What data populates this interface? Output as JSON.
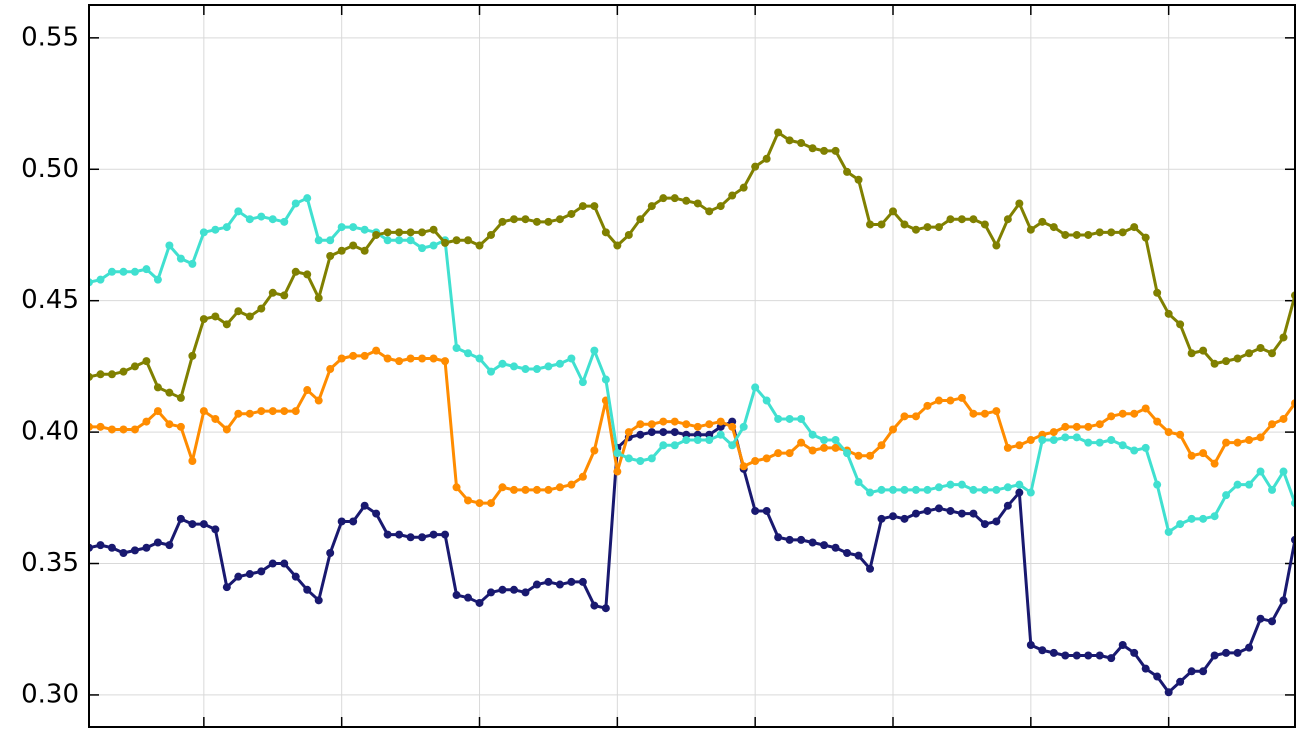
{
  "chart_data": {
    "type": "line",
    "xlim": [
      0,
      105
    ],
    "xticks": [
      10,
      22,
      34,
      46,
      58,
      70,
      82,
      94
    ],
    "ylim": [
      0.2878,
      0.5625
    ],
    "yticks": [
      {
        "value": 0.3,
        "label": "0.30"
      },
      0.35,
      {
        "value": 0.4,
        "label": "0.40"
      },
      0.45,
      {
        "value": 0.5,
        "label": "0.50"
      },
      0.55
    ],
    "grid": true,
    "series": [
      {
        "color": "#191970",
        "values": [
          0.356,
          0.357,
          0.356,
          0.354,
          0.355,
          0.356,
          0.358,
          0.357,
          0.367,
          0.365,
          0.365,
          0.363,
          0.341,
          0.345,
          0.346,
          0.347,
          0.35,
          0.35,
          0.345,
          0.34,
          0.336,
          0.354,
          0.366,
          0.366,
          0.372,
          0.369,
          0.361,
          0.361,
          0.36,
          0.36,
          0.361,
          0.361,
          0.338,
          0.337,
          0.335,
          0.339,
          0.34,
          0.34,
          0.339,
          0.342,
          0.343,
          0.342,
          0.343,
          0.343,
          0.334,
          0.333,
          0.394,
          0.398,
          0.399,
          0.4,
          0.4,
          0.4,
          0.399,
          0.399,
          0.399,
          0.402,
          0.404,
          0.386,
          0.37,
          0.37,
          0.36,
          0.359,
          0.359,
          0.358,
          0.357,
          0.356,
          0.354,
          0.353,
          0.348,
          0.367,
          0.368,
          0.367,
          0.369,
          0.37,
          0.371,
          0.37,
          0.369,
          0.369,
          0.365,
          0.366,
          0.372,
          0.377,
          0.319,
          0.317,
          0.316,
          0.315,
          0.315,
          0.315,
          0.315,
          0.314,
          0.319,
          0.316,
          0.31,
          0.307,
          0.301,
          0.305,
          0.309,
          0.309,
          0.315,
          0.316,
          0.316,
          0.318,
          0.329,
          0.328,
          0.336,
          0.359
        ]
      },
      {
        "color": "#ff8c00",
        "values": [
          0.402,
          0.402,
          0.401,
          0.401,
          0.401,
          0.404,
          0.408,
          0.403,
          0.402,
          0.389,
          0.408,
          0.405,
          0.401,
          0.407,
          0.407,
          0.408,
          0.408,
          0.408,
          0.408,
          0.416,
          0.412,
          0.424,
          0.428,
          0.429,
          0.429,
          0.431,
          0.428,
          0.427,
          0.428,
          0.428,
          0.428,
          0.427,
          0.379,
          0.374,
          0.373,
          0.373,
          0.379,
          0.378,
          0.378,
          0.378,
          0.378,
          0.379,
          0.38,
          0.383,
          0.393,
          0.412,
          0.385,
          0.4,
          0.403,
          0.403,
          0.404,
          0.404,
          0.403,
          0.402,
          0.403,
          0.404,
          0.402,
          0.387,
          0.389,
          0.39,
          0.392,
          0.392,
          0.396,
          0.393,
          0.394,
          0.394,
          0.393,
          0.391,
          0.391,
          0.395,
          0.401,
          0.406,
          0.406,
          0.41,
          0.412,
          0.412,
          0.413,
          0.407,
          0.407,
          0.408,
          0.394,
          0.395,
          0.397,
          0.399,
          0.4,
          0.402,
          0.402,
          0.402,
          0.403,
          0.406,
          0.407,
          0.407,
          0.409,
          0.404,
          0.4,
          0.399,
          0.391,
          0.392,
          0.388,
          0.396,
          0.396,
          0.397,
          0.398,
          0.403,
          0.405,
          0.411
        ]
      },
      {
        "color": "#40e0d0",
        "values": [
          0.457,
          0.458,
          0.461,
          0.461,
          0.461,
          0.462,
          0.458,
          0.471,
          0.466,
          0.464,
          0.476,
          0.477,
          0.478,
          0.484,
          0.481,
          0.482,
          0.481,
          0.48,
          0.487,
          0.489,
          0.473,
          0.473,
          0.478,
          0.478,
          0.477,
          0.476,
          0.473,
          0.473,
          0.473,
          0.47,
          0.471,
          0.473,
          0.432,
          0.43,
          0.428,
          0.423,
          0.426,
          0.425,
          0.424,
          0.424,
          0.425,
          0.426,
          0.428,
          0.419,
          0.431,
          0.42,
          0.392,
          0.39,
          0.389,
          0.39,
          0.395,
          0.395,
          0.397,
          0.397,
          0.397,
          0.399,
          0.395,
          0.402,
          0.417,
          0.412,
          0.405,
          0.405,
          0.405,
          0.399,
          0.397,
          0.397,
          0.392,
          0.381,
          0.377,
          0.378,
          0.378,
          0.378,
          0.378,
          0.378,
          0.379,
          0.38,
          0.38,
          0.378,
          0.378,
          0.378,
          0.379,
          0.38,
          0.377,
          0.397,
          0.397,
          0.398,
          0.398,
          0.396,
          0.396,
          0.397,
          0.395,
          0.393,
          0.394,
          0.38,
          0.362,
          0.365,
          0.367,
          0.367,
          0.368,
          0.376,
          0.38,
          0.38,
          0.385,
          0.378,
          0.385,
          0.373
        ]
      },
      {
        "color": "#808000",
        "values": [
          0.421,
          0.422,
          0.422,
          0.423,
          0.425,
          0.427,
          0.417,
          0.415,
          0.413,
          0.429,
          0.443,
          0.444,
          0.441,
          0.446,
          0.444,
          0.447,
          0.453,
          0.452,
          0.461,
          0.46,
          0.451,
          0.467,
          0.469,
          0.471,
          0.469,
          0.475,
          0.476,
          0.476,
          0.476,
          0.476,
          0.477,
          0.472,
          0.473,
          0.473,
          0.471,
          0.475,
          0.48,
          0.481,
          0.481,
          0.48,
          0.48,
          0.481,
          0.483,
          0.486,
          0.486,
          0.476,
          0.471,
          0.475,
          0.481,
          0.486,
          0.489,
          0.489,
          0.488,
          0.487,
          0.484,
          0.486,
          0.49,
          0.493,
          0.501,
          0.504,
          0.514,
          0.511,
          0.51,
          0.508,
          0.507,
          0.507,
          0.499,
          0.496,
          0.479,
          0.479,
          0.484,
          0.479,
          0.477,
          0.478,
          0.478,
          0.481,
          0.481,
          0.481,
          0.479,
          0.471,
          0.481,
          0.487,
          0.477,
          0.48,
          0.478,
          0.475,
          0.475,
          0.475,
          0.476,
          0.476,
          0.476,
          0.478,
          0.474,
          0.453,
          0.445,
          0.441,
          0.43,
          0.431,
          0.426,
          0.427,
          0.428,
          0.43,
          0.432,
          0.43,
          0.436,
          0.452
        ]
      }
    ]
  }
}
